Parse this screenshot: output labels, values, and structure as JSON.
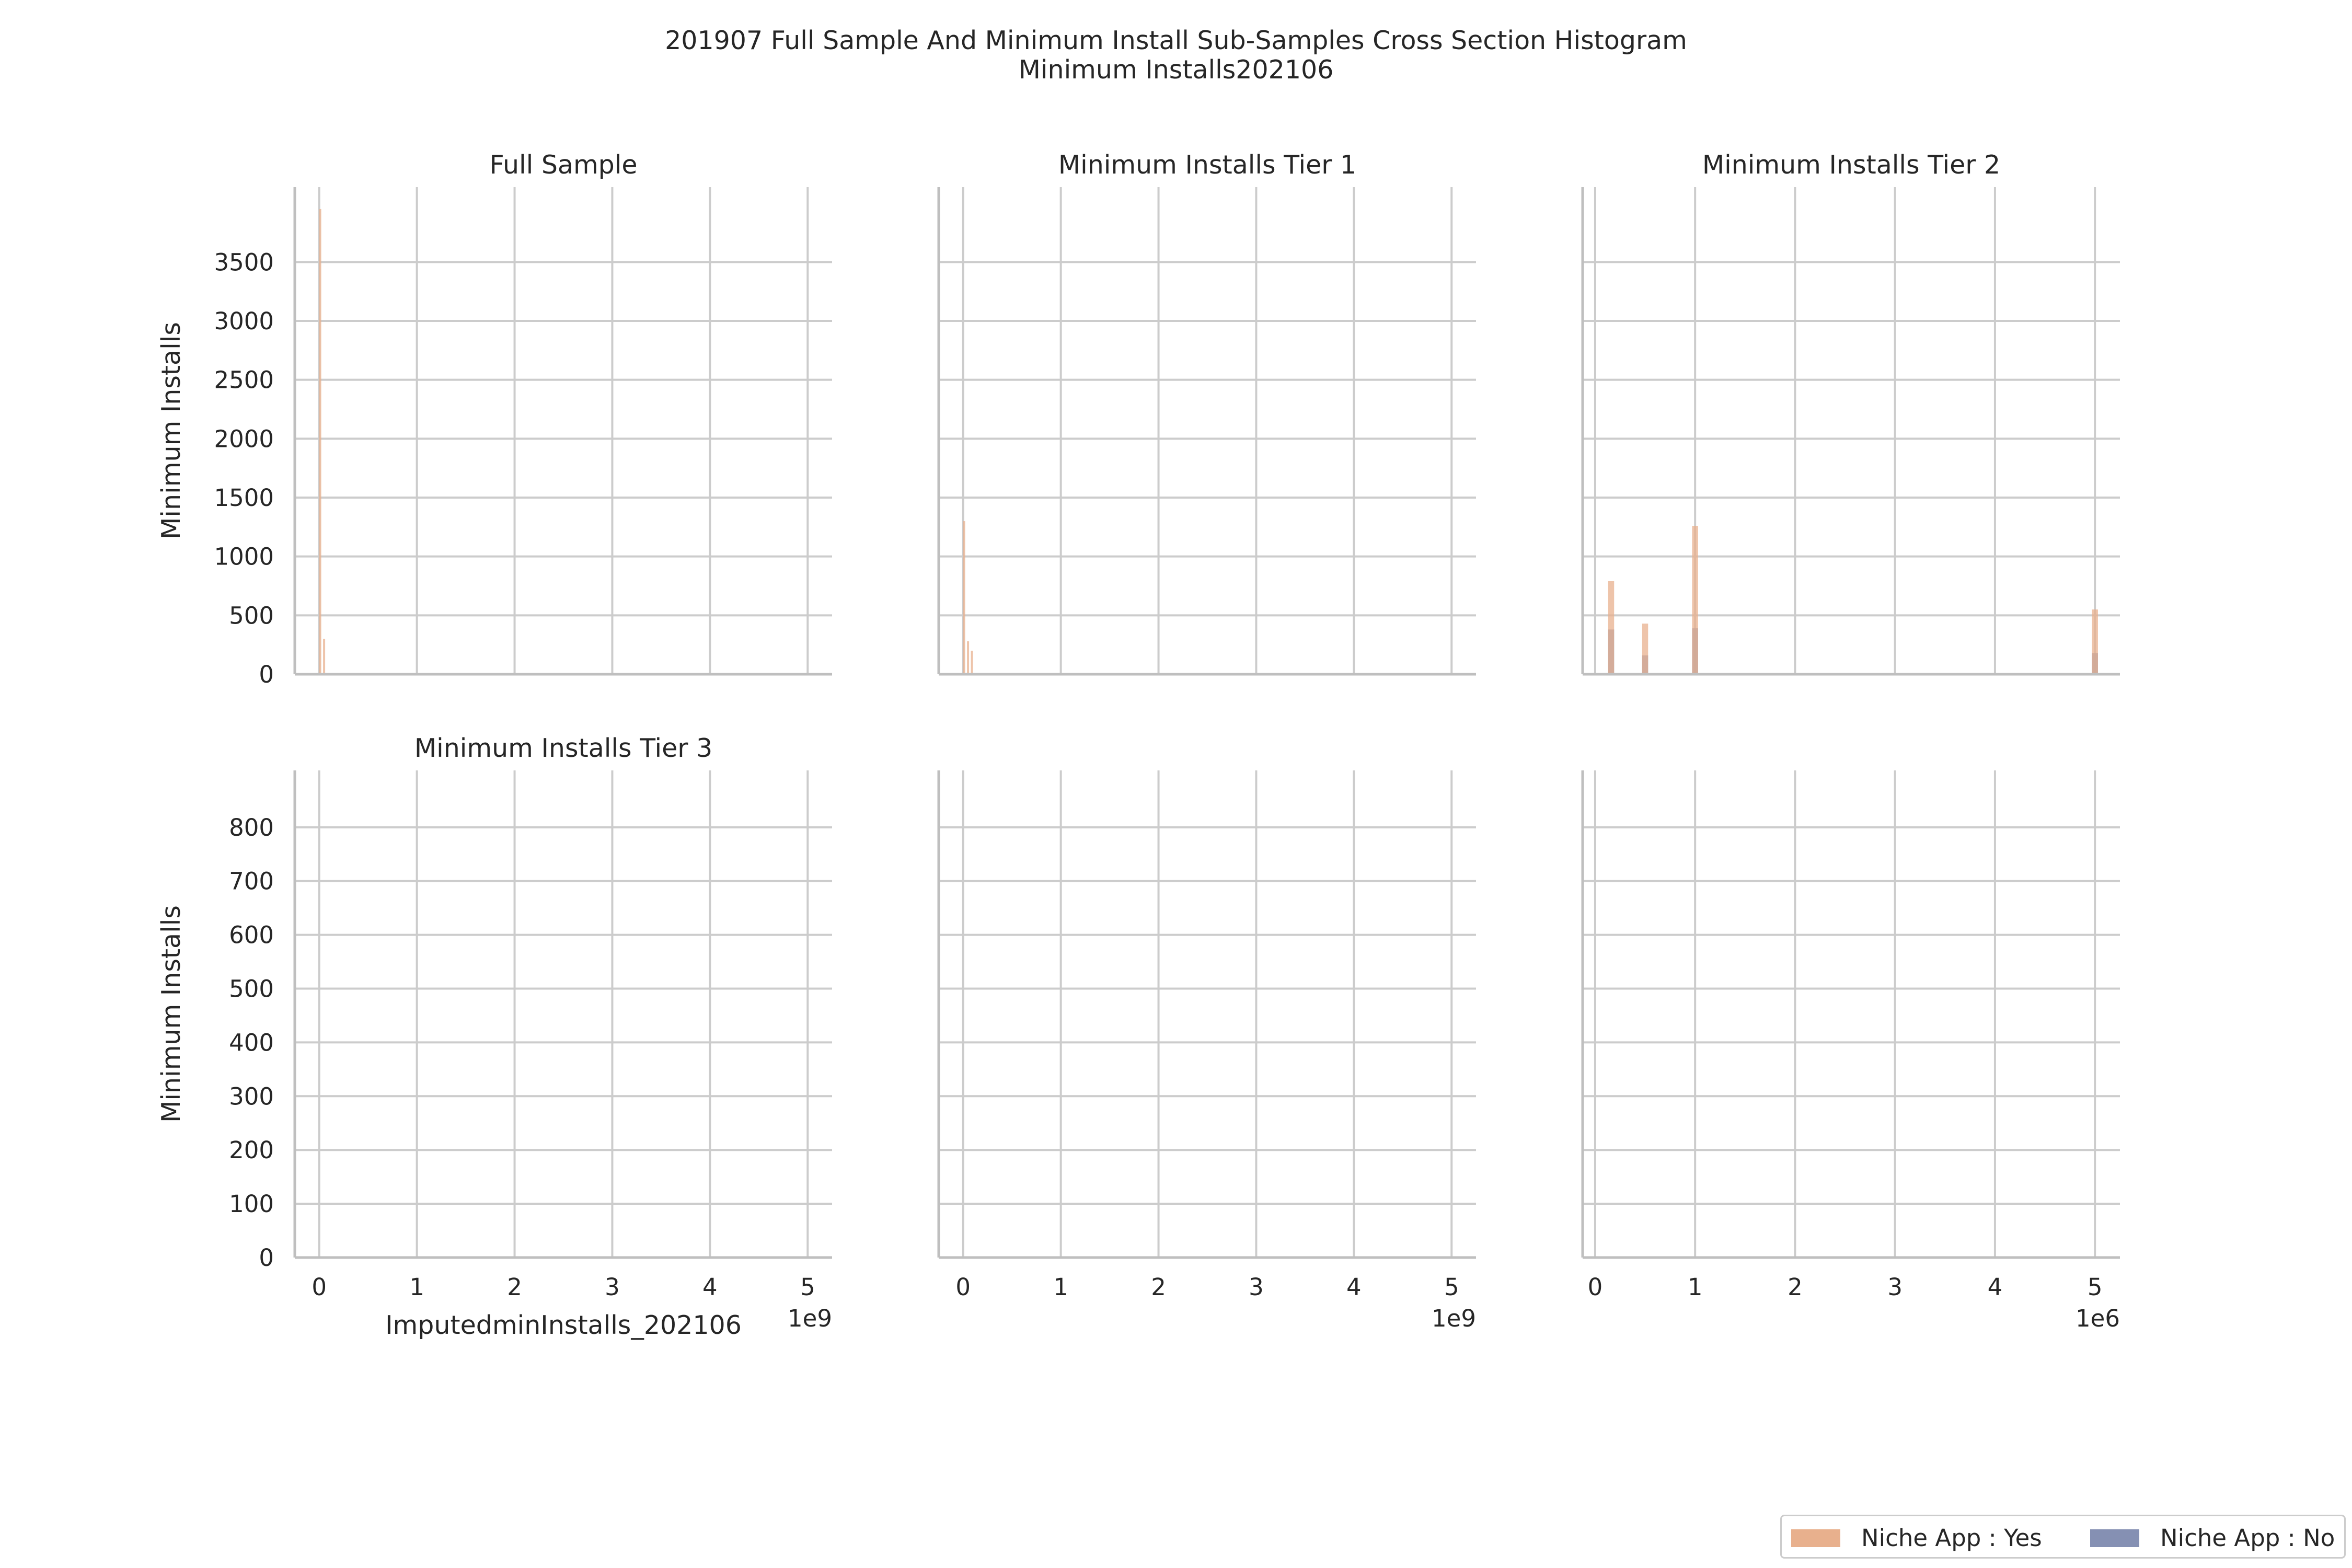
{
  "title": {
    "line1": "201907 Full Sample And Minimum Install Sub-Samples Cross Section Histogram",
    "line2": "Minimum Installs202106"
  },
  "colors": {
    "niche_yes": "#e8b08d",
    "niche_no": "#8590b3",
    "grid": "#cccccc",
    "axis": "#bfbfbf"
  },
  "legend": {
    "items": [
      {
        "label": "Niche App : Yes",
        "color": "#e8b08d"
      },
      {
        "label": "Niche App : No",
        "color": "#8590b3"
      }
    ],
    "placement": "bottom-right"
  },
  "chart_data": [
    {
      "type": "bar",
      "title": "Full Sample",
      "xlabel": "ImputedminInstalls_202106",
      "ylabel": "Minimum Installs",
      "x_ticks": [
        0,
        1,
        2,
        3,
        4,
        5
      ],
      "x_offset_label": "1e9",
      "xlim": [
        -0.25,
        5.25
      ],
      "y_ticks": [
        0,
        500,
        1000,
        1500,
        2000,
        2500,
        3000,
        3500
      ],
      "ylim": [
        0,
        3950
      ],
      "grid": true,
      "bin_width": 0.02,
      "series": [
        {
          "name": "Niche App : Yes",
          "bars": [
            {
              "x": 0.01,
              "y": 4000
            },
            {
              "x": 0.05,
              "y": 300
            }
          ]
        },
        {
          "name": "Niche App : No",
          "bars": []
        }
      ]
    },
    {
      "type": "bar",
      "title": "Minimum Installs Tier 1",
      "xlabel": "",
      "ylabel": "",
      "x_ticks": [
        0,
        1,
        2,
        3,
        4,
        5
      ],
      "x_offset_label": "1e9",
      "xlim": [
        -0.25,
        5.25
      ],
      "y_ticks": [
        0,
        500,
        1000,
        1500,
        2000,
        2500,
        3000,
        3500
      ],
      "ylim": [
        0,
        3950
      ],
      "grid": true,
      "bin_width": 0.02,
      "series": [
        {
          "name": "Niche App : Yes",
          "bars": [
            {
              "x": 0.01,
              "y": 1300
            },
            {
              "x": 0.05,
              "y": 280
            },
            {
              "x": 0.09,
              "y": 200
            }
          ]
        },
        {
          "name": "Niche App : No",
          "bars": []
        }
      ]
    },
    {
      "type": "bar",
      "title": "Minimum Installs Tier 2",
      "xlabel": "",
      "ylabel": "",
      "x_ticks": [
        0,
        1,
        2,
        3,
        4,
        5
      ],
      "x_offset_label": "1e6",
      "xlim": [
        -0.125,
        5.25
      ],
      "y_ticks": [
        0,
        500,
        1000,
        1500,
        2000,
        2500,
        3000,
        3500
      ],
      "ylim": [
        0,
        3950
      ],
      "grid": true,
      "bin_width": 0.1,
      "series": [
        {
          "name": "Niche App : Yes",
          "bars": [
            {
              "x": 0.16,
              "y": 790
            },
            {
              "x": 0.5,
              "y": 430
            },
            {
              "x": 1.0,
              "y": 1260
            },
            {
              "x": 5.0,
              "y": 550
            }
          ]
        },
        {
          "name": "Niche App : No",
          "bars": [
            {
              "x": 0.16,
              "y": 380
            },
            {
              "x": 0.5,
              "y": 160
            },
            {
              "x": 1.0,
              "y": 390
            },
            {
              "x": 5.0,
              "y": 180
            }
          ]
        }
      ]
    },
    {
      "type": "bar",
      "title": "Minimum Installs Tier 3",
      "xlabel": "ImputedminInstalls_202106",
      "ylabel": "Minimum Installs",
      "x_ticks": [
        0,
        1,
        2,
        3,
        4,
        5
      ],
      "x_offset_label": "1e9",
      "xlim": [
        -0.25,
        5.25
      ],
      "y_ticks": [
        0,
        100,
        200,
        300,
        400,
        500,
        600,
        700,
        800
      ],
      "ylim": [
        0,
        865
      ],
      "grid": true,
      "bin_width": 0.02,
      "series": [
        {
          "name": "Niche App : Yes",
          "bars": []
        },
        {
          "name": "Niche App : No",
          "bars": []
        }
      ]
    },
    {
      "type": "bar",
      "title": "",
      "xlabel": "",
      "ylabel": "",
      "x_ticks": [
        0,
        1,
        2,
        3,
        4,
        5
      ],
      "x_offset_label": "1e9",
      "xlim": [
        -0.25,
        5.25
      ],
      "y_ticks": [
        0,
        100,
        200,
        300,
        400,
        500,
        600,
        700,
        800
      ],
      "ylim": [
        0,
        865
      ],
      "grid": true,
      "bin_width": 0.02,
      "series": [
        {
          "name": "Niche App : Yes",
          "bars": []
        },
        {
          "name": "Niche App : No",
          "bars": []
        }
      ]
    },
    {
      "type": "bar",
      "title": "",
      "xlabel": "",
      "ylabel": "",
      "x_ticks": [
        0,
        1,
        2,
        3,
        4,
        5
      ],
      "x_offset_label": "1e6",
      "xlim": [
        -0.125,
        5.25
      ],
      "y_ticks": [
        0,
        100,
        200,
        300,
        400,
        500,
        600,
        700,
        800
      ],
      "ylim": [
        0,
        865
      ],
      "grid": true,
      "bin_width": 0.1,
      "series": [
        {
          "name": "Niche App : Yes",
          "bars": []
        },
        {
          "name": "Niche App : No",
          "bars": []
        }
      ]
    }
  ]
}
